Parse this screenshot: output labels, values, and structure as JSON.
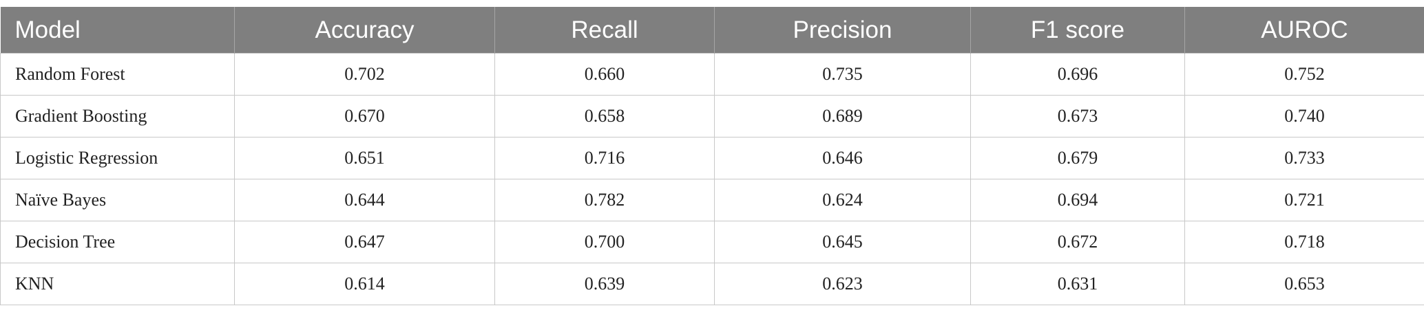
{
  "table": {
    "headers": [
      "Model",
      "Accuracy",
      "Recall",
      "Precision",
      "F1 score",
      "AUROC"
    ],
    "rows": [
      [
        "Random Forest",
        "0.702",
        "0.660",
        "0.735",
        "0.696",
        "0.752"
      ],
      [
        "Gradient Boosting",
        "0.670",
        "0.658",
        "0.689",
        "0.673",
        "0.740"
      ],
      [
        "Logistic Regression",
        "0.651",
        "0.716",
        "0.646",
        "0.679",
        "0.733"
      ],
      [
        "Naïve Bayes",
        "0.644",
        "0.782",
        "0.624",
        "0.694",
        "0.721"
      ],
      [
        "Decision Tree",
        "0.647",
        "0.700",
        "0.645",
        "0.672",
        "0.718"
      ],
      [
        "KNN",
        "0.614",
        "0.639",
        "0.623",
        "0.631",
        "0.653"
      ]
    ]
  }
}
